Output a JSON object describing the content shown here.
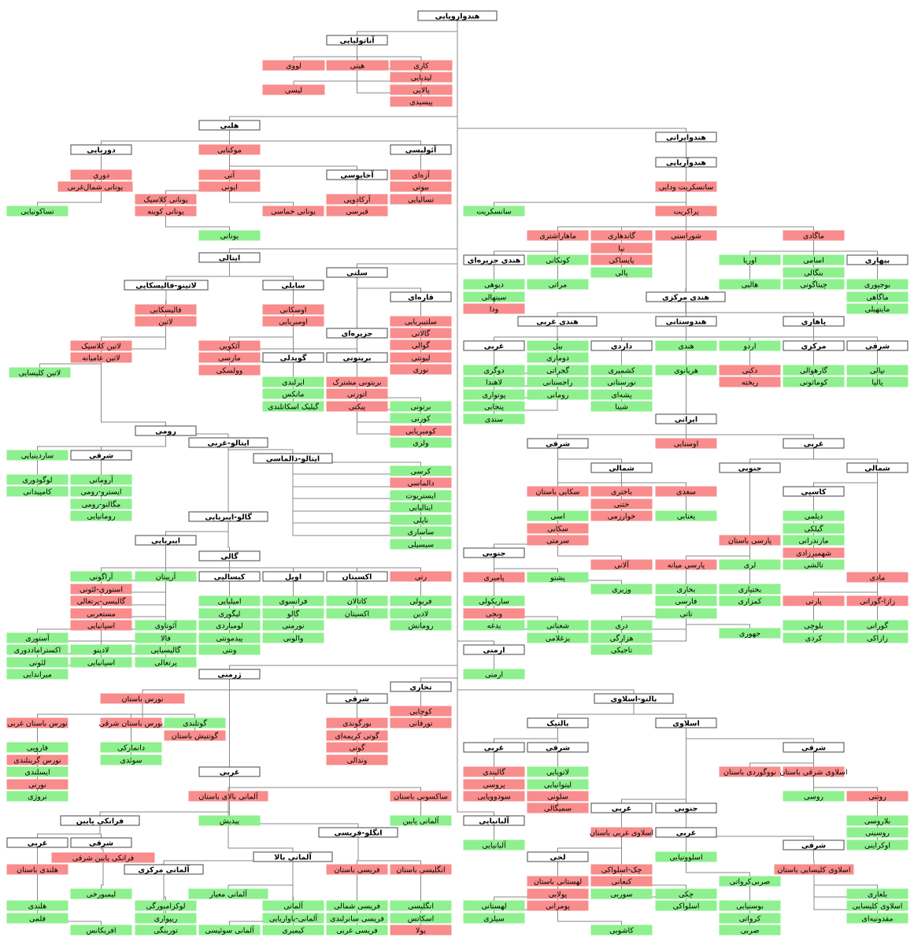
{
  "nodes": [
    "هندواروپایی",
    "آناتولیایی",
    "لووی",
    "هیتی",
    "کاری",
    "لیدیایی",
    "لیسی",
    "پالایی",
    "پیسیدی",
    "هلنی",
    "دوریایی",
    "موکنایی",
    "آئولیسی",
    "دوری",
    "آتی",
    "آخایوسی",
    "آزه‌ای",
    "یونانی شمال‌غربی",
    "ایونی",
    "بیوتی",
    "یونانی کلاسیک",
    "آرکادویی",
    "تسالیایی",
    "تساکونیایی",
    "یونانی کوینه",
    "یونانی خماسی",
    "قبرسی",
    "یونانی",
    "ایتالی",
    "لاتینو-فالیسکایی",
    "سابلی",
    "فالیسکایی",
    "اوسکانی",
    "لاتین",
    "اومبریایی",
    "لاتین کلاسیک",
    "لاتین عامیانه",
    "آئکویی",
    "مارسی",
    "وولسکی",
    "لاتین کلیسایی",
    "سلتی",
    "قاره‌ای",
    "سلتیبریایی",
    "گالاتی",
    "جزیره‌ای",
    "گوالی",
    "لپونتی",
    "نوری",
    "گویدلی",
    "بریتونی",
    "ایرلندی",
    "بریتونی مشترک",
    "مانکس",
    "اتورنی",
    "گیلیک اسکاتلندی",
    "پیکتی",
    "برتونی",
    "کورنی",
    "کومبریایی",
    "ولزی",
    "رومی",
    "ساردینیایی",
    "شرقی",
    "ایتالو-غربی",
    "ایتالو-دالماسی",
    "لوگودوری",
    "کامپیدانی",
    "آرومانی",
    "ایسترو-رومی",
    "مگالنو-رومی",
    "رومانیایی",
    "کرسی",
    "دالماسی",
    "ایستریوت",
    "ایتالیایی",
    "ناپلی",
    "ساساری",
    "سیسیلی",
    "گالو-ایبریایی",
    "ایبریایی",
    "گالی",
    "آراگونی",
    "آرپیتان",
    "کیسالپی",
    "اویل",
    "اکسیتان",
    "رتی",
    "استوری-لئونی",
    "گالیسی-پرتغالی",
    "مستعربی",
    "اسپانیایی",
    "امیلیایی",
    "لیگوری",
    "لومباردی",
    "پیدمونتی",
    "ونتی",
    "فرانسوی",
    "گالو",
    "نورمنی",
    "والونی",
    "کاتالان",
    "اکسیتان",
    "فریولی",
    "لادین",
    "رومانش",
    "آئوناوی",
    "فالا",
    "گالیسیایی",
    "پرتغالی",
    "آستوری",
    "اکستراماددوری",
    "لئونی",
    "میراندایی",
    "لادینو",
    "اسپانیایی",
    "ژرمنی",
    "نورس باستان",
    "شرقی",
    "نورس باستان غربی",
    "نورس باستان شرقی",
    "گوتلندی",
    "بورگوندی",
    "گوتی کریمه‌ای",
    "گوتی",
    "وندالی",
    "گوتنیش باستان",
    "فاروپی",
    "دانمارکی",
    "نورس گرینلندی",
    "سوئدی",
    "ایسلندی",
    "نورنی",
    "نروژی",
    "غربی",
    "آلمانی بالای باستان",
    "ساکسونی باستان",
    "فرانکی پایین",
    "ییدیش",
    "آلمانی پایین",
    "انگلو-فریسی",
    "غربی",
    "شرقی",
    "فرانکی پایین شرقی",
    "آلمانی بالا",
    "هلندی باستان",
    "آلمانی مرکزی",
    "فریسی باستان",
    "انگلیسی باستان",
    "لیمبورخی",
    "آلمانی معیار",
    "هلندی",
    "لوکزامبورگی",
    "آلمانی",
    "فریسی شمالی",
    "انگلیسی",
    "فلمی",
    "ریپواری",
    "آلمانی-باواریایی",
    "فریسی سانرلندی",
    "اسکاتس",
    "افریکانس",
    "تورینگی",
    "آلمانی سوئیسی",
    "کیمبری",
    "فریسی غربی",
    "یولا",
    "تخاری",
    "کوچایی",
    "تورفانی",
    "آلبانیایی",
    "آلبانیایی",
    "ارمنی",
    "ارمنی",
    "هندوایرانی",
    "هندوآریایی",
    "سانسکریت ودایی",
    "سانسکریت",
    "پراکریت",
    "ماهاراشتری",
    "گاندهاری",
    "شوراسنی",
    "ماگادی",
    "نیا",
    "پایساکی",
    "پالی",
    "هندی جزیره‌ای",
    "کونکانی",
    "اوریا",
    "اسامی",
    "بیهاری",
    "بنگالی",
    "دیوهی",
    "مراتی",
    "هالبی",
    "چیتاگونی",
    "بوجپوری",
    "سینهالی",
    "هندی مرکزی",
    "ماگاهی",
    "ودا",
    "مایتهیلی",
    "هندی غربی",
    "هندوستانی",
    "پاهاری",
    "غربی",
    "بیل",
    "داردی",
    "هندی",
    "اردو",
    "مرکزی",
    "شرقی",
    "دوماری",
    "دوگری",
    "گجراتی",
    "کشمیری",
    "هریانوی",
    "دکنی",
    "گارهوالی",
    "نپالی",
    "لاهندا",
    "راجستانی",
    "نورستانی",
    "ریخته",
    "کوماثونی",
    "پالپا",
    "پوتواری",
    "رومانی",
    "پشه‌ای",
    "پنجابی",
    "شینا",
    "سندی",
    "ایرانی",
    "اوستایی",
    "شرقی",
    "غربی",
    "شمالی",
    "جنوبی",
    "شمالی",
    "سکایی باستان",
    "باختری",
    "سغدی",
    "کاسپی",
    "ختنی",
    "خوارزمی",
    "اسی",
    "یغنابی",
    "دیلمی",
    "سکایی",
    "گیلکی",
    "سرمتی",
    "پارسی باستان",
    "مازندرانی",
    "جنوبی",
    "شهمیرزادی",
    "آلانی",
    "پارسی میانه",
    "لری",
    "تالشی",
    "پامیری",
    "پشتو",
    "مادی",
    "وزیری",
    "بختیاری",
    "بخاری",
    "ساریکولی",
    "فارسی",
    "کمزاری",
    "پارتی",
    "زازا-گورانی",
    "ونجی",
    "تاتی",
    "دری",
    "یدغه",
    "شغنانی",
    "بلوچی",
    "گورانی",
    "هزارگی",
    "جهوری",
    "یزغلامی",
    "کردی",
    "زازاکی",
    "تاجیکی",
    "بالتو-اسلاوی",
    "بالتیک",
    "اسلاوی",
    "غربی",
    "شرقی",
    "شرقی",
    "گالیندی",
    "لاتویایی",
    "نووگوردی باستان",
    "اسلاوی شرقی باستان",
    "پروسی",
    "لیتوانیایی",
    "روسی",
    "سودوویایی",
    "سلونی",
    "روتنی",
    "سمیگالی",
    "غربی",
    "جنوبی",
    "بلاروسی",
    "اسلاوی غربی باستان",
    "غربی",
    "روسینی",
    "شرقی",
    "اوکراینی",
    "لخی",
    "اسلوونیایی",
    "چک-اسلواکی",
    "اسلاوی کلیسایی باستان",
    "لهستانی باستان",
    "کنعانی",
    "صربی‌کرواتی",
    "پولابی",
    "سوربی",
    "چکی",
    "بلغاری",
    "پومرانی",
    "بوسنیایی",
    "اسلواکی",
    "اسلاوی کلیسایی",
    "لهستانی",
    "کرواتی",
    "مقدونیه‌ای",
    "سیلزی",
    "صربی",
    "کاشوبی"
  ]
}
